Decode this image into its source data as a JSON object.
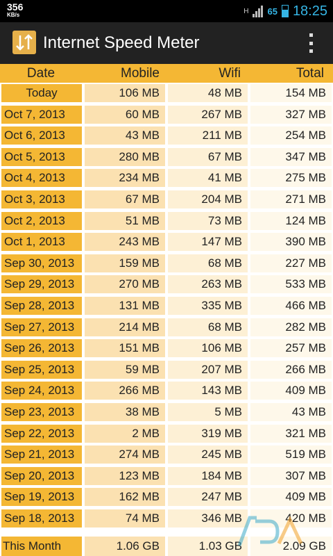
{
  "status_bar": {
    "speed_value": "356",
    "speed_unit": "KB/s",
    "network_type": "H",
    "battery_level": "65",
    "time": "18:25"
  },
  "app": {
    "title": "Internet Speed Meter",
    "icon": "up-down-arrows-icon"
  },
  "table": {
    "headers": [
      "Date",
      "Mobile",
      "Wifi",
      "Total"
    ],
    "rows": [
      {
        "date": "Today",
        "mobile": "106 MB",
        "wifi": "48 MB",
        "total": "154 MB"
      },
      {
        "date": "Oct 7, 2013",
        "mobile": "60 MB",
        "wifi": "267 MB",
        "total": "327 MB"
      },
      {
        "date": "Oct 6, 2013",
        "mobile": "43 MB",
        "wifi": "211 MB",
        "total": "254 MB"
      },
      {
        "date": "Oct 5, 2013",
        "mobile": "280 MB",
        "wifi": "67 MB",
        "total": "347 MB"
      },
      {
        "date": "Oct 4, 2013",
        "mobile": "234 MB",
        "wifi": "41 MB",
        "total": "275 MB"
      },
      {
        "date": "Oct 3, 2013",
        "mobile": "67 MB",
        "wifi": "204 MB",
        "total": "271 MB"
      },
      {
        "date": "Oct 2, 2013",
        "mobile": "51 MB",
        "wifi": "73 MB",
        "total": "124 MB"
      },
      {
        "date": "Oct 1, 2013",
        "mobile": "243 MB",
        "wifi": "147 MB",
        "total": "390 MB"
      },
      {
        "date": "Sep 30, 2013",
        "mobile": "159 MB",
        "wifi": "68 MB",
        "total": "227 MB"
      },
      {
        "date": "Sep 29, 2013",
        "mobile": "270 MB",
        "wifi": "263 MB",
        "total": "533 MB"
      },
      {
        "date": "Sep 28, 2013",
        "mobile": "131 MB",
        "wifi": "335 MB",
        "total": "466 MB"
      },
      {
        "date": "Sep 27, 2013",
        "mobile": "214 MB",
        "wifi": "68 MB",
        "total": "282 MB"
      },
      {
        "date": "Sep 26, 2013",
        "mobile": "151 MB",
        "wifi": "106 MB",
        "total": "257 MB"
      },
      {
        "date": "Sep 25, 2013",
        "mobile": "59 MB",
        "wifi": "207 MB",
        "total": "266 MB"
      },
      {
        "date": "Sep 24, 2013",
        "mobile": "266 MB",
        "wifi": "143 MB",
        "total": "409 MB"
      },
      {
        "date": "Sep 23, 2013",
        "mobile": "38 MB",
        "wifi": "5 MB",
        "total": "43 MB"
      },
      {
        "date": "Sep 22, 2013",
        "mobile": "2 MB",
        "wifi": "319 MB",
        "total": "321 MB"
      },
      {
        "date": "Sep 21, 2013",
        "mobile": "274 MB",
        "wifi": "245 MB",
        "total": "519 MB"
      },
      {
        "date": "Sep 20, 2013",
        "mobile": "123 MB",
        "wifi": "184 MB",
        "total": "307 MB"
      },
      {
        "date": "Sep 19, 2013",
        "mobile": "162 MB",
        "wifi": "247 MB",
        "total": "409 MB"
      },
      {
        "date": "Sep 18, 2013",
        "mobile": "74 MB",
        "wifi": "346 MB",
        "total": "420 MB"
      }
    ],
    "footer": {
      "label": "This Month",
      "mobile": "1.06 GB",
      "wifi": "1.03 GB",
      "total": "2.09 GB"
    }
  },
  "colors": {
    "date_column": "#f4b734",
    "mobile_column": "#fbe1b1",
    "wifi_column": "#fdf0d5",
    "total_column": "#fef8ea",
    "action_bar": "#222222",
    "status_accent": "#35b5e5"
  }
}
